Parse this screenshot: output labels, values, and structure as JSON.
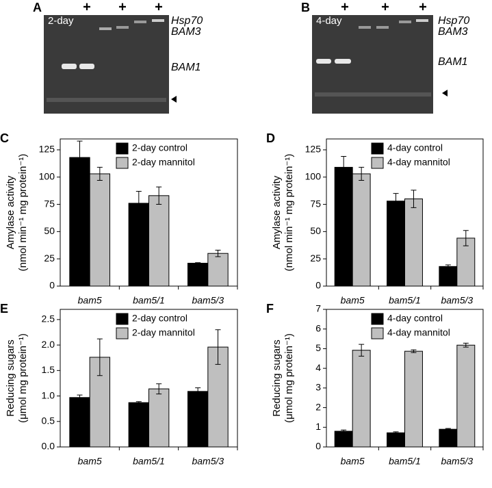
{
  "gels": [
    {
      "label": "A",
      "day": "2-day",
      "lanes": [
        "+",
        "+",
        "+"
      ],
      "bands": [
        "Hsp70",
        "BAM3",
        "BAM1"
      ]
    },
    {
      "label": "B",
      "day": "4-day",
      "lanes": [
        "+",
        "+",
        "+"
      ],
      "bands": [
        "Hsp70",
        "BAM3",
        "BAM1"
      ]
    }
  ],
  "chart_data": [
    {
      "type": "bar",
      "label": "C",
      "ylabel": [
        "Amylase activity",
        "(nmol min⁻¹ mg protein⁻¹)"
      ],
      "categories": [
        "bam5",
        "bam5/1",
        "bam5/3"
      ],
      "series": [
        {
          "name": "2-day control",
          "color": "#000000",
          "values": [
            118,
            76,
            21
          ],
          "errors": [
            15,
            11,
            0.5
          ]
        },
        {
          "name": "2-day mannitol",
          "color": "#bfbfbf",
          "values": [
            103,
            83,
            30
          ],
          "errors": [
            6,
            8,
            3
          ]
        }
      ],
      "ylim": [
        0,
        135
      ],
      "yticks": [
        0,
        25,
        50,
        75,
        100,
        125
      ]
    },
    {
      "type": "bar",
      "label": "D",
      "ylabel": [
        "Amylase activity",
        "(nmol min⁻¹ mg protein⁻¹)"
      ],
      "categories": [
        "bam5",
        "bam5/1",
        "bam5/3"
      ],
      "series": [
        {
          "name": "4-day control",
          "color": "#000000",
          "values": [
            109,
            78,
            18
          ],
          "errors": [
            10,
            7,
            1.5
          ]
        },
        {
          "name": "4-day mannitol",
          "color": "#bfbfbf",
          "values": [
            103,
            80,
            44
          ],
          "errors": [
            6,
            8,
            7
          ]
        }
      ],
      "ylim": [
        0,
        135
      ],
      "yticks": [
        0,
        25,
        50,
        75,
        100,
        125
      ]
    },
    {
      "type": "bar",
      "label": "E",
      "ylabel": [
        "Reducing sugars",
        "(μmol mg protein⁻¹)"
      ],
      "categories": [
        "bam5",
        "bam5/1",
        "bam5/3"
      ],
      "series": [
        {
          "name": "2-day control",
          "color": "#000000",
          "values": [
            0.97,
            0.87,
            1.09
          ],
          "errors": [
            0.05,
            0.02,
            0.07
          ]
        },
        {
          "name": "2-day mannitol",
          "color": "#bfbfbf",
          "values": [
            1.76,
            1.14,
            1.96
          ],
          "errors": [
            0.36,
            0.1,
            0.34
          ]
        }
      ],
      "ylim": [
        0,
        2.7
      ],
      "yticks": [
        {
          "value": 0,
          "label": "0.0"
        },
        0.5,
        {
          "value": 1,
          "label": "1.0"
        },
        1.5,
        {
          "value": 2,
          "label": "2.0"
        },
        2.5
      ]
    },
    {
      "type": "bar",
      "label": "F",
      "ylabel": [
        "Reducing sugars",
        "(μmol mg protein⁻¹)"
      ],
      "categories": [
        "bam5",
        "bam5/1",
        "bam5/3"
      ],
      "series": [
        {
          "name": "4-day control",
          "color": "#000000",
          "values": [
            0.8,
            0.72,
            0.9
          ],
          "errors": [
            0.06,
            0.05,
            0.04
          ]
        },
        {
          "name": "4-day mannitol",
          "color": "#bfbfbf",
          "values": [
            4.92,
            4.87,
            5.18
          ],
          "errors": [
            0.3,
            0.07,
            0.1
          ]
        }
      ],
      "ylim": [
        0,
        7
      ],
      "yticks": [
        0,
        1,
        2,
        3,
        4,
        5,
        6,
        7
      ]
    }
  ]
}
